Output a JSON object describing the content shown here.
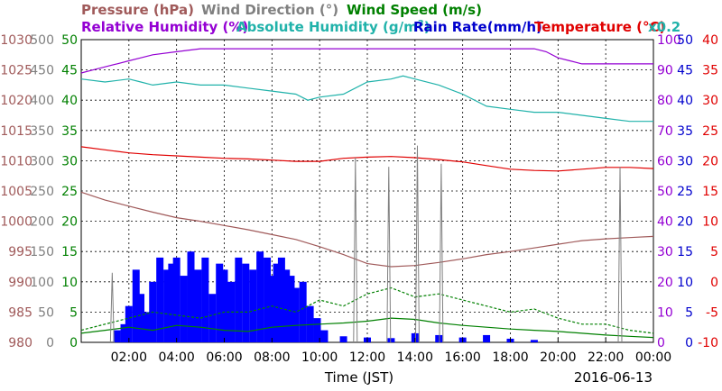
{
  "chart_data": {
    "type": "line",
    "xlabel": "Time (JST)",
    "date": "2016-06-13",
    "x_ticks": [
      "02:00",
      "04:00",
      "06:00",
      "08:00",
      "10:00",
      "12:00",
      "14:00",
      "16:00",
      "18:00",
      "20:00",
      "22:00",
      "00:00"
    ],
    "x_range_hours": [
      0,
      24
    ],
    "grid": true,
    "titles": {
      "pressure": "Pressure (hPa)",
      "wind_direction": "Wind Direction (°)",
      "wind_speed": "Wind Speed (m/s)",
      "relative_humidity": "Relative Humidity (%)",
      "absolute_humidity_prefix": "Absolute Humidity (g/m",
      "absolute_humidity_exp": "3",
      "absolute_humidity_suffix": ")",
      "rain_rate": "Rain Rate(mm/h)",
      "temperature": "Temperature (°C)",
      "abs_humidity_scale": "x0.2"
    },
    "axes": {
      "pressure": {
        "color": "#a05a5a",
        "ticks": [
          "1030",
          "1025",
          "1020",
          "1015",
          "1010",
          "1005",
          "1000",
          "995",
          "990",
          "985",
          "980"
        ],
        "range": [
          980,
          1030
        ]
      },
      "wind_direction": {
        "color": "#808080",
        "ticks": [
          "500",
          "450",
          "400",
          "350",
          "300",
          "250",
          "200",
          "150",
          "100",
          "50",
          "0"
        ],
        "range": [
          0,
          500
        ]
      },
      "wind_speed": {
        "color": "#008000",
        "ticks": [
          "50",
          "45",
          "40",
          "35",
          "30",
          "25",
          "20",
          "15",
          "10",
          "5",
          "0"
        ],
        "range": [
          0,
          50
        ]
      },
      "relative_humidity": {
        "color": "#9400d3",
        "ticks": [
          "100",
          "90",
          "80",
          "70",
          "60",
          "50",
          "40",
          "30",
          "20",
          "10",
          "0"
        ],
        "range": [
          0,
          100
        ]
      },
      "rain_rate": {
        "color": "#0000cd",
        "ticks": [
          "50",
          "45",
          "40",
          "35",
          "30",
          "25",
          "20",
          "15",
          "10",
          "5",
          "0"
        ],
        "range": [
          0,
          50
        ]
      },
      "temperature": {
        "color": "#e00000",
        "ticks": [
          "40",
          "35",
          "30",
          "25",
          "20",
          "15",
          "10",
          "5",
          "0",
          "-5",
          "-10"
        ],
        "range": [
          -10,
          40
        ]
      }
    },
    "series": [
      {
        "name": "Relative Humidity (%)",
        "color": "#9400d3",
        "axis": "relative_humidity",
        "x": [
          0,
          0.5,
          1,
          1.5,
          2,
          2.5,
          3,
          4,
          5,
          6,
          7,
          8,
          9,
          10,
          11,
          12,
          13,
          14,
          15,
          16,
          17,
          18,
          19,
          19.5,
          20,
          20.5,
          21,
          22,
          23,
          24
        ],
        "y": [
          89,
          90,
          91,
          92,
          93,
          94,
          95,
          96,
          97,
          97,
          97,
          97,
          97,
          97,
          97,
          97,
          97,
          97,
          97,
          97,
          97,
          97,
          97,
          96,
          94,
          93,
          92,
          92,
          92,
          92
        ]
      },
      {
        "name": "Absolute Humidity (g/m3)",
        "color": "#20b2aa",
        "axis": "relative_humidity",
        "x": [
          0,
          1,
          2,
          2.5,
          3,
          4,
          5,
          6,
          7,
          8,
          9,
          9.5,
          10,
          11,
          12,
          13,
          13.5,
          14,
          15,
          16,
          17,
          18,
          19,
          20,
          21,
          22,
          23,
          24
        ],
        "y": [
          87,
          86,
          87,
          86,
          85,
          86,
          85,
          85,
          84,
          83,
          82,
          80,
          81,
          82,
          86,
          87,
          88,
          87,
          85,
          82,
          78,
          77,
          76,
          76,
          75,
          74,
          73,
          73
        ]
      },
      {
        "name": "Temperature (°C)",
        "color": "#e00000",
        "axis": "temperature",
        "x": [
          0,
          1,
          2,
          3,
          4,
          5,
          6,
          7,
          8,
          9,
          10,
          11,
          12,
          13,
          14,
          15,
          16,
          17,
          18,
          19,
          20,
          21,
          22,
          23,
          24
        ],
        "y": [
          22.3,
          21.8,
          21.3,
          21.0,
          20.8,
          20.6,
          20.4,
          20.3,
          20.1,
          19.9,
          19.9,
          20.4,
          20.6,
          20.7,
          20.5,
          20.2,
          19.8,
          19.2,
          18.6,
          18.4,
          18.3,
          18.6,
          18.9,
          18.9,
          18.7
        ]
      },
      {
        "name": "Pressure (hPa)",
        "color": "#a05a5a",
        "axis": "pressure",
        "x": [
          0,
          1,
          2,
          3,
          4,
          5,
          6,
          7,
          8,
          9,
          10,
          11,
          12,
          13,
          14,
          15,
          16,
          17,
          18,
          19,
          20,
          21,
          22,
          23,
          24
        ],
        "y": [
          1004.8,
          1003.5,
          1002.5,
          1001.5,
          1000.6,
          1000,
          999.3,
          998.6,
          997.8,
          997,
          995.8,
          994.5,
          993,
          992.5,
          992.7,
          993.2,
          993.8,
          994.5,
          995,
          995.6,
          996.2,
          996.8,
          997.1,
          997.3,
          997.5
        ]
      },
      {
        "name": "Wind Speed (m/s) solid",
        "color": "#008000",
        "axis": "wind_speed",
        "x": [
          0,
          1,
          2,
          3,
          4,
          5,
          6,
          7,
          8,
          9,
          10,
          11,
          12,
          13,
          14,
          15,
          16,
          17,
          18,
          19,
          20,
          21,
          22,
          23,
          24
        ],
        "y": [
          1.5,
          2,
          2.5,
          2,
          2.8,
          2.5,
          2,
          1.8,
          2.5,
          2.8,
          3,
          3.2,
          3.5,
          4,
          3.8,
          3.2,
          2.8,
          2.5,
          2.2,
          2,
          1.8,
          1.5,
          1.2,
          1,
          0.8
        ]
      },
      {
        "name": "Wind Speed (m/s) gust",
        "color": "#008000",
        "axis": "wind_speed",
        "x": [
          0,
          1,
          2,
          3,
          4,
          5,
          6,
          7,
          8,
          9,
          10,
          11,
          12,
          13,
          14,
          15,
          16,
          17,
          18,
          19,
          20,
          21,
          22,
          23,
          24
        ],
        "y": [
          2,
          3,
          4,
          5,
          4.5,
          4,
          5,
          5,
          6,
          5,
          7,
          6,
          8,
          9,
          7.5,
          8,
          7,
          6,
          5,
          5.5,
          4,
          3,
          3,
          2,
          1.5
        ]
      }
    ],
    "wind_direction_spikes": {
      "x": [
        1.3,
        11.5,
        12.9,
        14.1,
        15.1,
        22.6
      ],
      "y": [
        115,
        305,
        290,
        325,
        295,
        290
      ]
    },
    "rain": {
      "color": "#0000ff",
      "axis": "rain_rate",
      "x": [
        1.5,
        1.8,
        2,
        2.3,
        2.5,
        2.8,
        3,
        3.3,
        3.6,
        3.8,
        4,
        4.3,
        4.6,
        4.9,
        5.2,
        5.5,
        5.8,
        6,
        6.3,
        6.6,
        6.9,
        7.2,
        7.5,
        7.8,
        8,
        8.2,
        8.4,
        8.6,
        8.8,
        9,
        9.3,
        9.6,
        9.9,
        10.2,
        11,
        12,
        13,
        14,
        15,
        16,
        17,
        18,
        19
      ],
      "y": [
        2,
        3,
        6,
        12,
        8,
        5,
        10,
        14,
        12,
        13,
        14,
        11,
        15,
        12,
        14,
        8,
        13,
        12,
        10,
        14,
        13,
        12,
        15,
        14,
        11,
        13,
        14,
        12,
        11,
        9,
        10,
        6,
        4,
        2,
        1,
        0.8,
        0.7,
        1.5,
        1.2,
        0.8,
        1.2,
        0.6,
        0.4
      ]
    }
  }
}
